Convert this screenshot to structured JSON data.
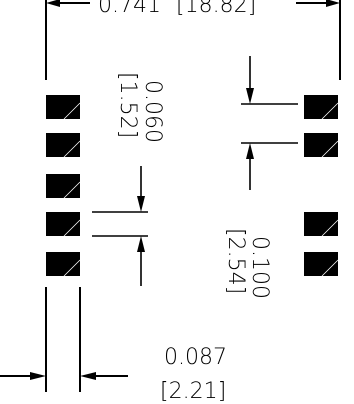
{
  "dimensions": {
    "overall_width": {
      "inches": "0.741",
      "mm": "[18.82]"
    },
    "pad_height": {
      "inches": "0.060",
      "mm": "[1.52]"
    },
    "pad_pitch": {
      "inches": "0.100",
      "mm": "[2.54]"
    },
    "pad_width": {
      "inches": "0.087",
      "mm": "[2.21]"
    }
  },
  "pads": {
    "left_column_count": 5,
    "right_column_count": 4
  }
}
